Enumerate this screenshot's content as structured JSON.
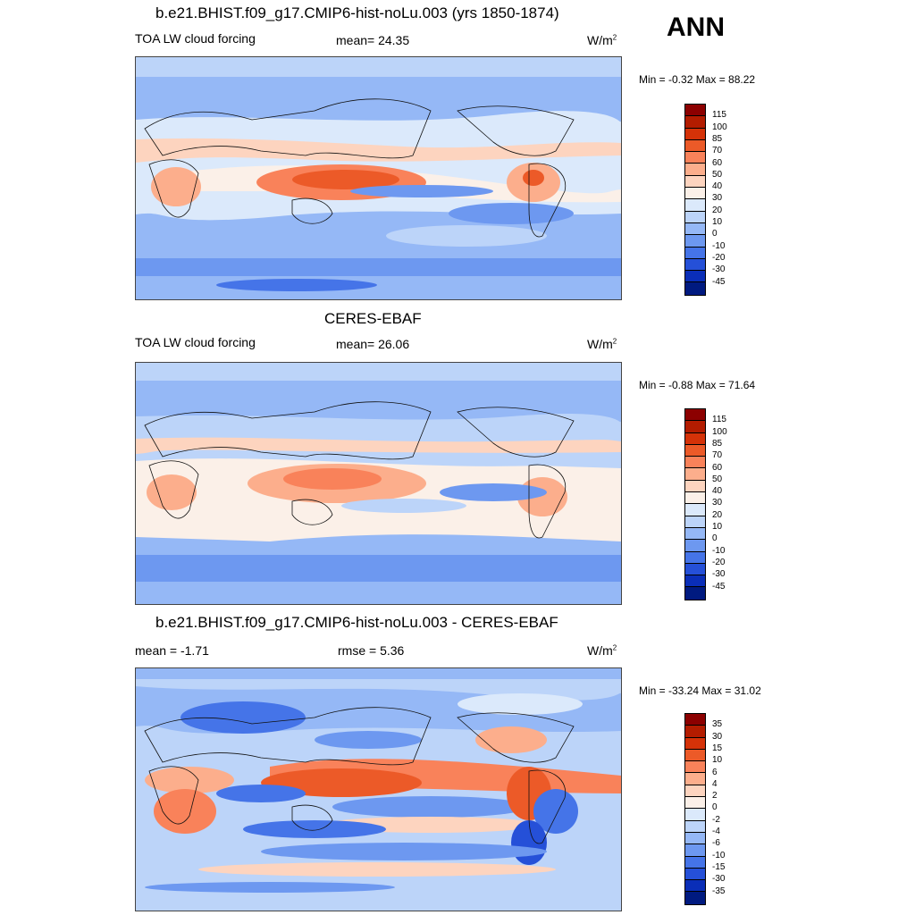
{
  "season": "ANN",
  "units_base": "W/m",
  "units_exp": "2",
  "panels": [
    {
      "id": "model",
      "title": "b.e21.BHIST.f09_g17.CMIP6-hist-noLu.003 (yrs 1850-1874)",
      "left_label": "TOA LW cloud forcing",
      "center_label": "mean=  24.35",
      "minmax": "Min =  -0.32 Max =  88.22"
    },
    {
      "id": "obs",
      "title": "CERES-EBAF",
      "left_label": "TOA LW cloud forcing",
      "center_label": "mean=  26.06",
      "minmax": "Min =  -0.88 Max =  71.64"
    },
    {
      "id": "diff",
      "title": "b.e21.BHIST.f09_g17.CMIP6-hist-noLu.003 - CERES-EBAF",
      "left_label": "mean =  -1.71",
      "center_label": "rmse =   5.36",
      "minmax": "Min = -33.24 Max =  31.02"
    }
  ],
  "colorbars": {
    "absolute": {
      "labels": [
        "115",
        "100",
        "85",
        "70",
        "60",
        "50",
        "40",
        "30",
        "20",
        "10",
        "0",
        "-10",
        "-20",
        "-30",
        "-45"
      ],
      "colors": [
        "#8c0000",
        "#b31c00",
        "#d53208",
        "#ec5a28",
        "#f9825a",
        "#fcae8c",
        "#fdd4bf",
        "#fbf0e8",
        "#dbe9fb",
        "#bcd4f9",
        "#95b8f6",
        "#6d98f0",
        "#4574e8",
        "#2550d8",
        "#0a2eb8",
        "#001a80"
      ]
    },
    "difference": {
      "labels": [
        "35",
        "30",
        "15",
        "10",
        "6",
        "4",
        "2",
        "0",
        "-2",
        "-4",
        "-6",
        "-10",
        "-15",
        "-30",
        "-35"
      ],
      "colors": [
        "#8c0000",
        "#b31c00",
        "#d53208",
        "#ec5a28",
        "#f9825a",
        "#fcae8c",
        "#fdd4bf",
        "#fbf0e8",
        "#dbe9fb",
        "#bcd4f9",
        "#95b8f6",
        "#6d98f0",
        "#4574e8",
        "#2550d8",
        "#0a2eb8",
        "#001a80"
      ]
    }
  }
}
